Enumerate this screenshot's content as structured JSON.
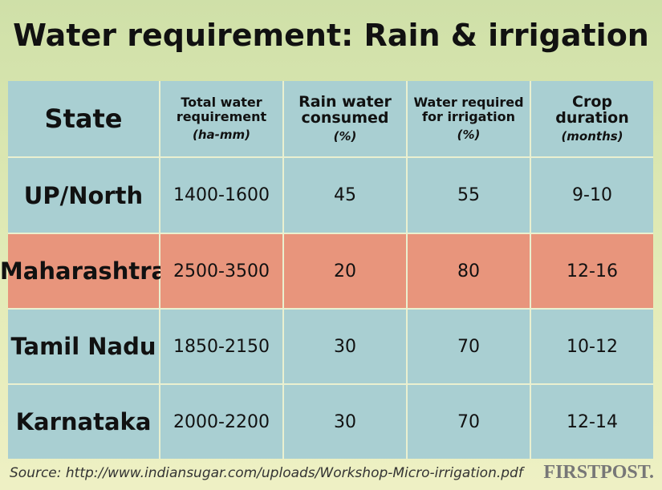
{
  "header": {
    "title": "Water requirement: Rain & irrigation"
  },
  "table": {
    "columns": [
      {
        "name": "State"
      },
      {
        "name": "Total water requirement",
        "unit": "(ha-mm)"
      },
      {
        "name": "Rain water consumed",
        "unit": "(%)"
      },
      {
        "name": "Water required for irrigation",
        "unit": "(%)"
      },
      {
        "name": "Crop duration",
        "unit": "(months)"
      }
    ],
    "rows": [
      [
        "UP/North",
        "1400-1600",
        45,
        55,
        "9-10"
      ],
      [
        "Maharashtra",
        "2500-3500",
        20,
        80,
        "12-16"
      ],
      [
        "Tamil Nadu",
        "1850-2150",
        30,
        70,
        "10-12"
      ],
      [
        "Karnataka",
        "2000-2200",
        30,
        70,
        "12-14"
      ]
    ],
    "highlight_row": 1
  },
  "footer": {
    "source": "Source: http://www.indiansugar.com/uploads/Workshop-Micro-irrigation.pdf",
    "logo": "FIRSTPOST."
  }
}
